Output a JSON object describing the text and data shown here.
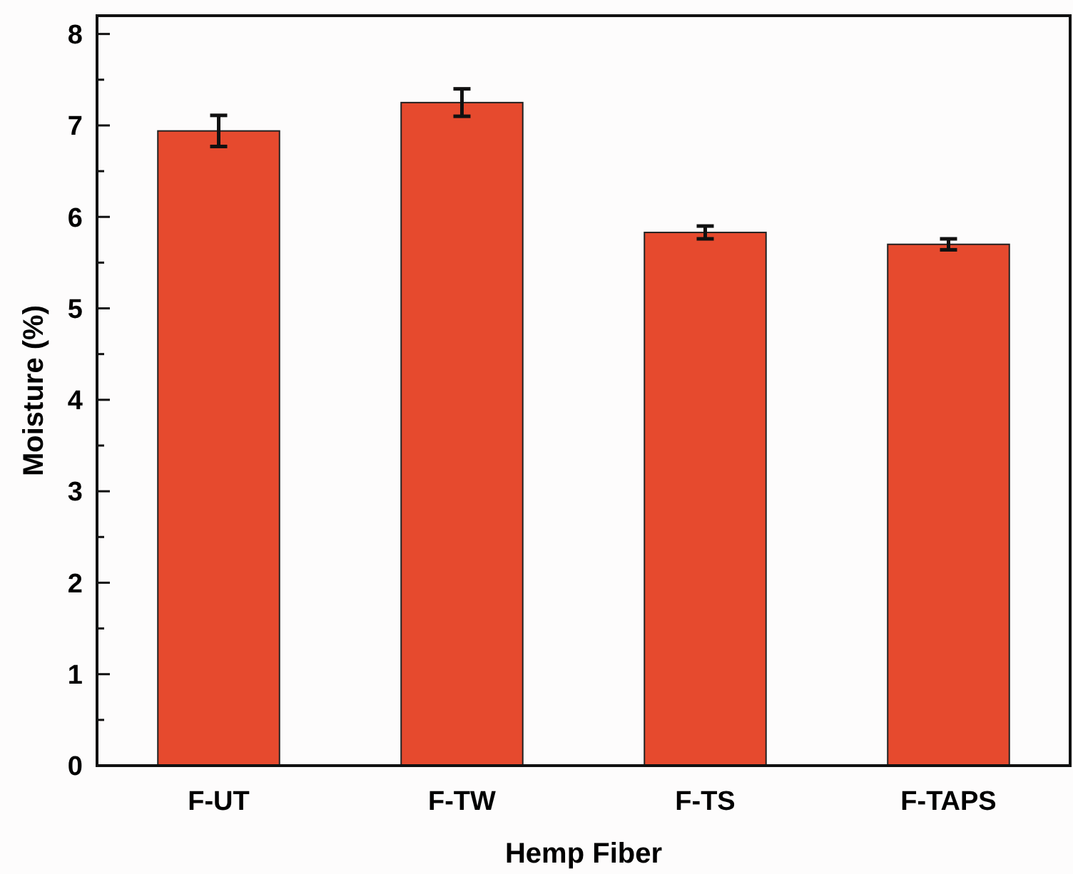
{
  "chart_data": {
    "type": "bar",
    "xlabel": "Hemp Fiber",
    "ylabel": "Moisture (%)",
    "categories": [
      "F-UT",
      "F-TW",
      "F-TS",
      "F-TAPS"
    ],
    "values": [
      6.94,
      7.25,
      5.83,
      5.7
    ],
    "errors": [
      0.17,
      0.15,
      0.07,
      0.06
    ],
    "color": "#e64a2e",
    "ylim": [
      0,
      8.2
    ],
    "yticks": [
      0,
      {
        "value": 0.5,
        "label": null
      },
      1,
      {
        "value": 1.5,
        "label": null
      },
      2,
      {
        "value": 2.5,
        "label": null
      },
      3,
      {
        "value": 3.5,
        "label": null
      },
      4,
      {
        "value": 4.5,
        "label": null
      },
      5,
      {
        "value": 5.5,
        "label": null
      },
      6,
      {
        "value": 6.5,
        "label": null
      },
      7,
      {
        "value": 7.5,
        "label": null
      },
      8
    ],
    "grid": false
  }
}
